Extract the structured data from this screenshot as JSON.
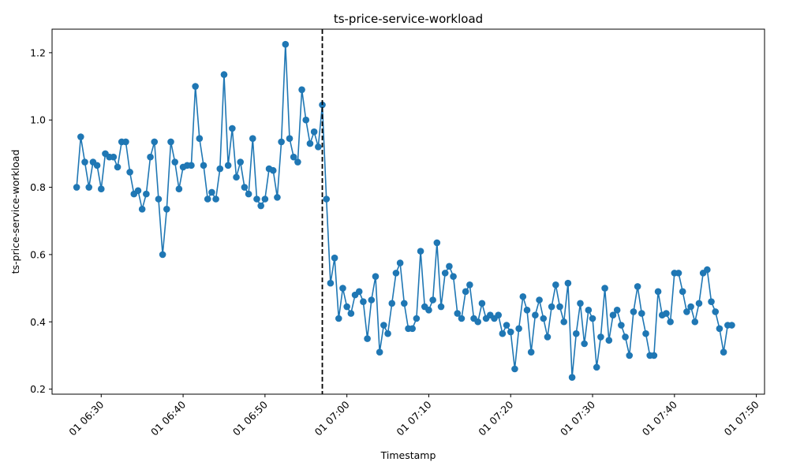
{
  "chart_data": {
    "type": "line",
    "title": "ts-price-service-workload",
    "xlabel": "Timestamp",
    "ylabel": "ts-price-service-workload",
    "x_start": "01 06:27",
    "x_interval_seconds": 30,
    "x_ticks": [
      "01 06:30",
      "01 06:40",
      "01 06:50",
      "01 07:00",
      "01 07:10",
      "01 07:20",
      "01 07:30",
      "01 07:40",
      "01 07:50"
    ],
    "y_ticks": [
      "0.2",
      "0.4",
      "0.6",
      "0.8",
      "1.0",
      "1.2"
    ],
    "ylim": [
      0.185,
      1.27
    ],
    "xlim": [
      "01 06:24",
      "01 07:51"
    ],
    "grid": false,
    "line_color": "#1f77b4",
    "marker": "circle",
    "vline": {
      "at": "01 06:57",
      "style": "dashed",
      "color": "#000000"
    },
    "series": [
      {
        "values": [
          0.8,
          0.95,
          0.875,
          0.8,
          0.875,
          0.865,
          0.795,
          0.9,
          0.89,
          0.89,
          0.86,
          0.935,
          0.935,
          0.845,
          0.78,
          0.79,
          0.735,
          0.78,
          0.89,
          0.935,
          0.765,
          0.6,
          0.735,
          0.935,
          0.875,
          0.795,
          0.86,
          0.865,
          0.865,
          1.1,
          0.945,
          0.865,
          0.765,
          0.785,
          0.765,
          0.855,
          1.135,
          0.865,
          0.975,
          0.83,
          0.875,
          0.8,
          0.78,
          0.945,
          0.765,
          0.745,
          0.765,
          0.855,
          0.85,
          0.77,
          0.935,
          1.225,
          0.945,
          0.89,
          0.875,
          1.09,
          1.0,
          0.93,
          0.965,
          0.92,
          1.045,
          0.765,
          0.515,
          0.59,
          0.41,
          0.5,
          0.445,
          0.425,
          0.48,
          0.49,
          0.46,
          0.35,
          0.465,
          0.535,
          0.31,
          0.39,
          0.365,
          0.455,
          0.545,
          0.575,
          0.455,
          0.38,
          0.38,
          0.41,
          0.61,
          0.445,
          0.435,
          0.465,
          0.635,
          0.445,
          0.545,
          0.565,
          0.535,
          0.425,
          0.41,
          0.49,
          0.51,
          0.41,
          0.4,
          0.455,
          0.41,
          0.42,
          0.41,
          0.42,
          0.365,
          0.39,
          0.37,
          0.26,
          0.38,
          0.475,
          0.435,
          0.31,
          0.42,
          0.465,
          0.41,
          0.355,
          0.445,
          0.51,
          0.445,
          0.4,
          0.515,
          0.235,
          0.365,
          0.455,
          0.335,
          0.435,
          0.41,
          0.265,
          0.355,
          0.5,
          0.345,
          0.42,
          0.435,
          0.39,
          0.355,
          0.3,
          0.43,
          0.505,
          0.425,
          0.365,
          0.3,
          0.3,
          0.49,
          0.42,
          0.425,
          0.4,
          0.545,
          0.545,
          0.49,
          0.43,
          0.445,
          0.4,
          0.455,
          0.545,
          0.555,
          0.46,
          0.43,
          0.38,
          0.31,
          0.39,
          0.39
        ]
      }
    ]
  }
}
